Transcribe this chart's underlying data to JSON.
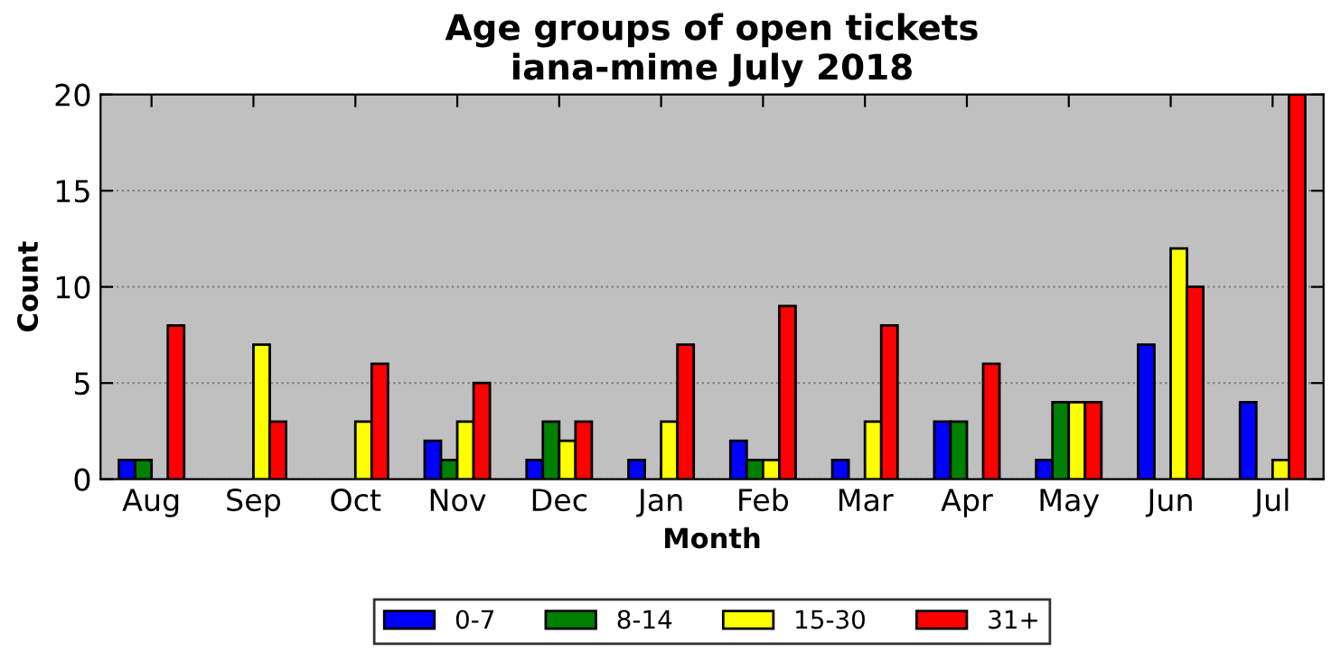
{
  "chart_data": {
    "type": "bar",
    "title": "Age groups of open tickets\niana-mime July 2018",
    "xlabel": "Month",
    "ylabel": "Count",
    "categories": [
      "Aug",
      "Sep",
      "Oct",
      "Nov",
      "Dec",
      "Jan",
      "Feb",
      "Mar",
      "Apr",
      "May",
      "Jun",
      "Jul"
    ],
    "series": [
      {
        "name": "0-7",
        "color": "#0000ff",
        "values": [
          1,
          0,
          0,
          2,
          1,
          1,
          2,
          1,
          3,
          1,
          7,
          4
        ]
      },
      {
        "name": "8-14",
        "color": "#008000",
        "values": [
          1,
          0,
          0,
          1,
          3,
          0,
          1,
          0,
          3,
          4,
          0,
          0
        ]
      },
      {
        "name": "15-30",
        "color": "#ffff00",
        "values": [
          0,
          7,
          3,
          3,
          2,
          3,
          1,
          3,
          0,
          4,
          12,
          1
        ]
      },
      {
        "name": "31+",
        "color": "#ff0000",
        "values": [
          8,
          3,
          6,
          5,
          3,
          7,
          9,
          8,
          6,
          4,
          10,
          20
        ]
      }
    ],
    "ylim": [
      0,
      20
    ],
    "yticks": [
      0,
      5,
      10,
      15,
      20
    ],
    "grid": "y",
    "legend": "bottom"
  }
}
